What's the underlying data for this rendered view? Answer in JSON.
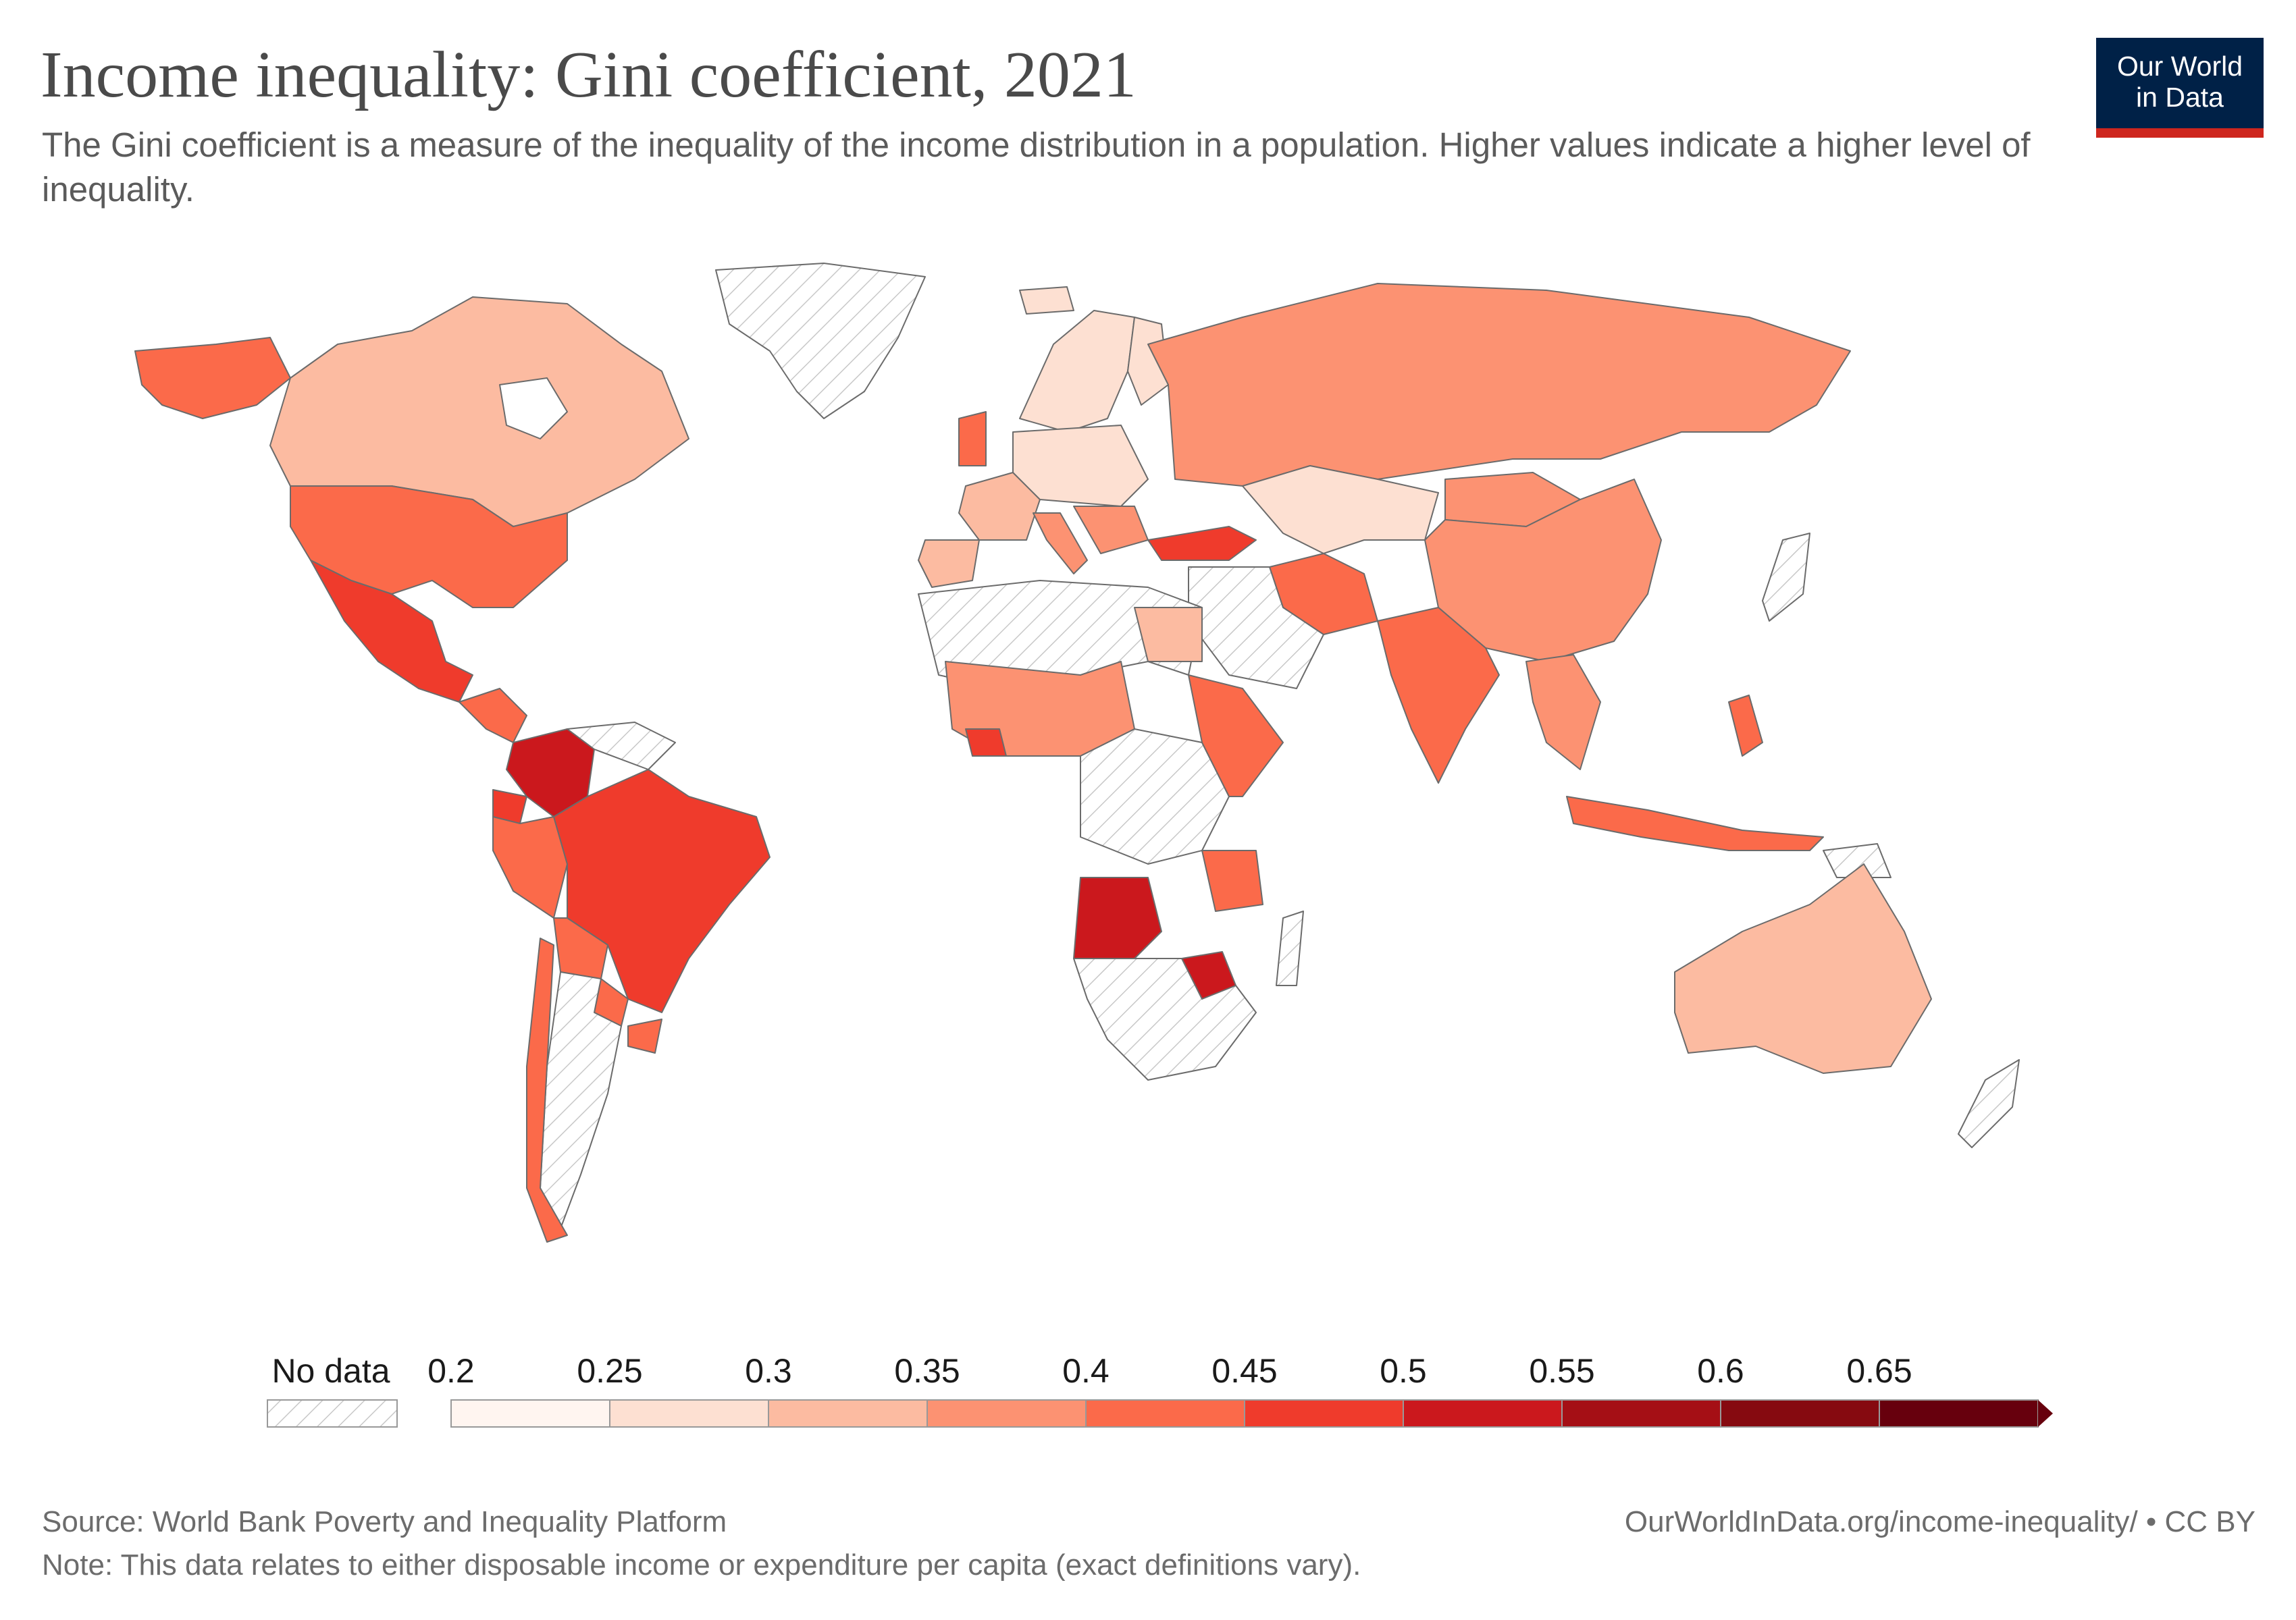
{
  "header": {
    "title": "Income inequality: Gini coefficient, 2021",
    "subtitle": "The Gini coefficient is a measure of the inequality of the income distribution in a population. Higher values indicate a higher level of inequality."
  },
  "logo": {
    "line1": "Our World",
    "line2": "in Data",
    "background": "#002147",
    "accent": "#ce261e"
  },
  "legend": {
    "no_data_label": "No data",
    "ticks": [
      "0.2",
      "0.25",
      "0.3",
      "0.35",
      "0.4",
      "0.45",
      "0.5",
      "0.55",
      "0.6",
      "0.65"
    ],
    "colors": [
      "#fff5f0",
      "#fde0d2",
      "#fcbba1",
      "#fc9272",
      "#fb6a4a",
      "#ef3b2c",
      "#cb181d",
      "#a50f15",
      "#860a10",
      "#67000d"
    ]
  },
  "footer": {
    "source": "Source: World Bank Poverty and Inequality Platform",
    "url": "OurWorldInData.org/income-inequality/ • CC BY",
    "note": "Note: This data relates to either disposable income or expenditure per capita (exact definitions vary)."
  }
}
